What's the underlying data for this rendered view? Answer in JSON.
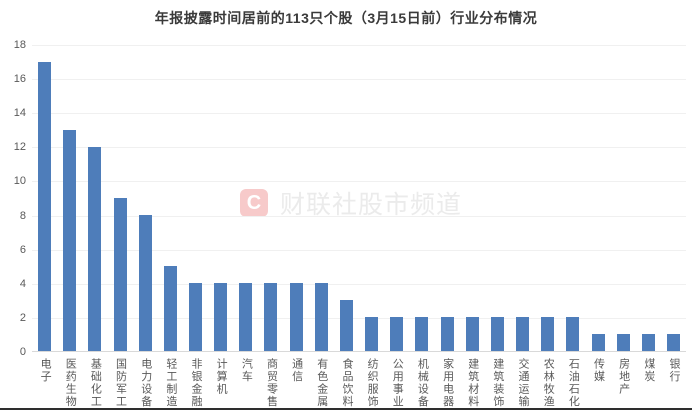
{
  "title": "年报披露时间居前的113只个股（3月15日前）行业分布情况",
  "watermark": {
    "logo_letter": "C",
    "text": "财联社股市频道"
  },
  "colors": {
    "bar": "#4e7dba",
    "gridline": "#f0f0f0",
    "zero_line": "#d9d9d9",
    "axis_text": "#595959",
    "title_text": "#3a3a3a",
    "watermark_text": "#ebebeb",
    "watermark_logo_bg": "#f7caca",
    "bottom_rule": "#2e2e2e",
    "background": "#ffffff"
  },
  "chart_data": {
    "type": "bar",
    "title": "年报披露时间居前的113只个股（3月15日前）行业分布情况",
    "categories": [
      "电子",
      "医药生物",
      "基础化工",
      "国防军工",
      "电力设备",
      "轻工制造",
      "非银金融",
      "计算机",
      "汽车",
      "商贸零售",
      "通信",
      "有色金属",
      "食品饮料",
      "纺织服饰",
      "公用事业",
      "机械设备",
      "家用电器",
      "建筑材料",
      "建筑装饰",
      "交通运输",
      "农林牧渔",
      "石油石化",
      "传媒",
      "房地产",
      "煤炭",
      "银行"
    ],
    "values": [
      17,
      13,
      12,
      9,
      8,
      5,
      4,
      4,
      4,
      4,
      4,
      4,
      3,
      2,
      2,
      2,
      2,
      2,
      2,
      2,
      2,
      2,
      1,
      1,
      1,
      1
    ],
    "xlabel": "",
    "ylabel": "",
    "ylim": [
      0,
      18
    ],
    "yticks": [
      0,
      2,
      4,
      6,
      8,
      10,
      12,
      14,
      16,
      18
    ],
    "grid": true,
    "legend_position": "none",
    "bar_color": "#4e7dba",
    "total_stocks": 113
  }
}
